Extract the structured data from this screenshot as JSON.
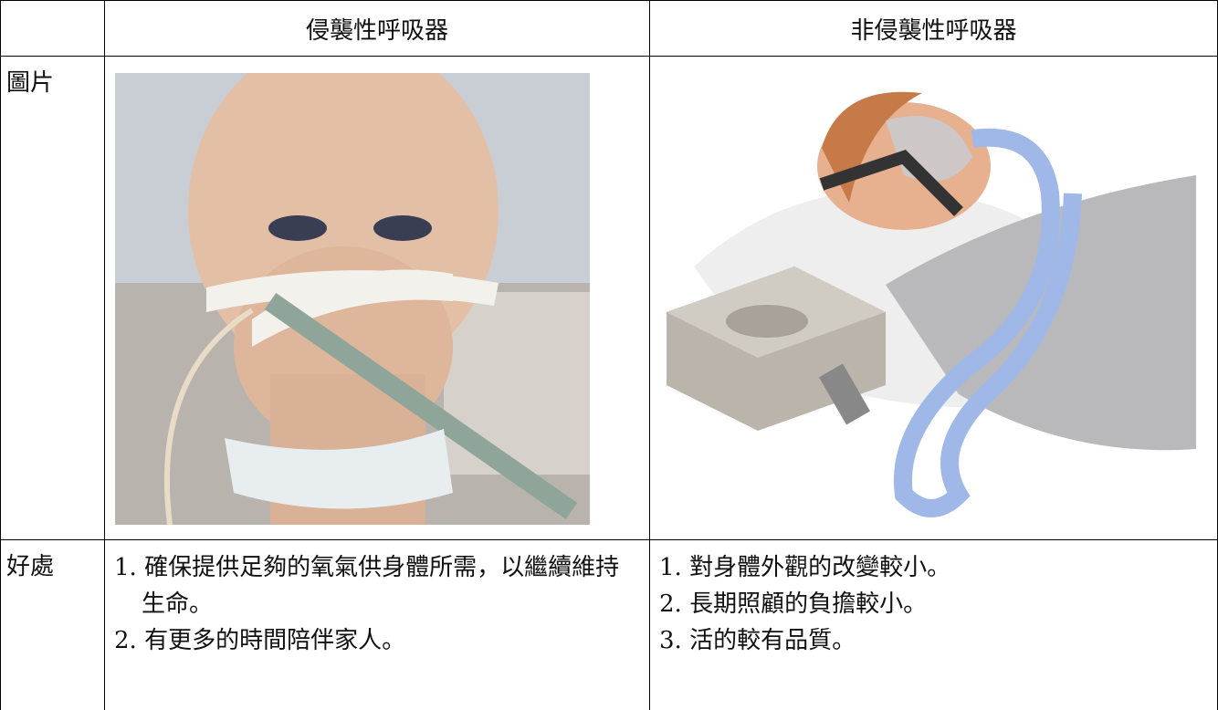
{
  "table": {
    "columns": [
      "侵襲性呼吸器",
      "非侵襲性呼吸器"
    ],
    "rows": [
      {
        "label": "圖片"
      },
      {
        "label": "好處",
        "cells": [
          [
            "1. 確保提供足夠的氧氣供身體所需，以繼續維持生命。",
            "2. 有更多的時間陪伴家人。"
          ],
          [
            "1. 對身體外觀的改變較小。",
            "2. 長期照顧的負擔較小。",
            "3. 活的較有品質。"
          ]
        ]
      }
    ]
  }
}
